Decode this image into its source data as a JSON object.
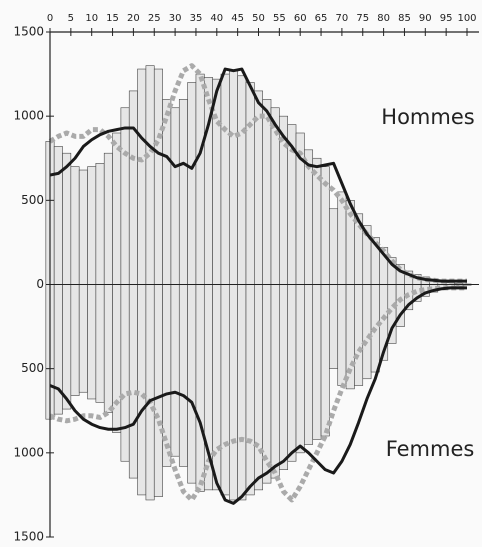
{
  "chart_data": {
    "type": "pyramid",
    "annotations": [
      "Hommes",
      "Femmes"
    ],
    "x": [
      0,
      2,
      4,
      6,
      8,
      10,
      12,
      14,
      16,
      18,
      20,
      22,
      24,
      26,
      28,
      30,
      32,
      34,
      36,
      38,
      40,
      42,
      44,
      46,
      48,
      50,
      52,
      54,
      56,
      58,
      60,
      62,
      64,
      66,
      68,
      70,
      72,
      74,
      76,
      78,
      80,
      82,
      84,
      86,
      88,
      90,
      92,
      94,
      96,
      98,
      100
    ],
    "xlim": [
      0,
      100
    ],
    "xticks": [
      0,
      5,
      10,
      15,
      20,
      25,
      30,
      35,
      40,
      45,
      50,
      55,
      60,
      65,
      70,
      75,
      80,
      85,
      90,
      95,
      100
    ],
    "ylim": [
      -1500,
      1500
    ],
    "yticks": [
      1500,
      1000,
      500,
      0,
      {
        "value": -500,
        "label": "500"
      },
      {
        "value": -1000,
        "label": "1000"
      },
      {
        "value": -1500,
        "label": "1500"
      }
    ],
    "series": [
      {
        "type": "bar",
        "color": "#e6e6e6",
        "values": [
          850,
          820,
          780,
          700,
          680,
          700,
          720,
          780,
          900,
          1050,
          1150,
          1280,
          1300,
          1280,
          1100,
          1050,
          1100,
          1200,
          1250,
          1230,
          1220,
          1250,
          1270,
          1240,
          1200,
          1150,
          1100,
          1050,
          1000,
          950,
          900,
          800,
          750,
          700,
          450,
          550,
          500,
          420,
          350,
          280,
          220,
          160,
          120,
          80,
          60,
          45,
          30,
          20,
          12,
          6,
          3
        ]
      },
      {
        "type": "line",
        "color": "#aaaaaa",
        "values": [
          850,
          880,
          900,
          880,
          880,
          920,
          920,
          880,
          820,
          780,
          750,
          740,
          780,
          860,
          1000,
          1150,
          1270,
          1300,
          1250,
          1100,
          970,
          920,
          880,
          900,
          950,
          1000,
          1000,
          920,
          840,
          800,
          780,
          700,
          650,
          600,
          560,
          500,
          420,
          360,
          300,
          250,
          200,
          140,
          90,
          60,
          40,
          30,
          25,
          20,
          20,
          20,
          20
        ]
      },
      {
        "type": "line",
        "color": "#1a1a1a",
        "values": [
          650,
          660,
          700,
          750,
          820,
          860,
          890,
          910,
          920,
          930,
          930,
          870,
          820,
          780,
          760,
          700,
          720,
          690,
          780,
          950,
          1150,
          1280,
          1270,
          1280,
          1180,
          1080,
          1030,
          950,
          880,
          820,
          750,
          710,
          700,
          710,
          720,
          600,
          480,
          380,
          300,
          240,
          180,
          120,
          80,
          60,
          40,
          30,
          25,
          20,
          20,
          20,
          20
        ]
      },
      {
        "type": "bar",
        "color": "#e6e6e6",
        "values": [
          -800,
          -770,
          -740,
          -660,
          -640,
          -680,
          -700,
          -760,
          -880,
          -1050,
          -1150,
          -1250,
          -1280,
          -1260,
          -1080,
          -1020,
          -1080,
          -1180,
          -1230,
          -1220,
          -1220,
          -1250,
          -1280,
          -1280,
          -1250,
          -1220,
          -1180,
          -1150,
          -1100,
          -1050,
          -1000,
          -950,
          -920,
          -900,
          -500,
          -600,
          -620,
          -600,
          -560,
          -520,
          -450,
          -350,
          -250,
          -150,
          -100,
          -70,
          -45,
          -25,
          -15,
          -8,
          -4
        ]
      },
      {
        "type": "line",
        "color": "#aaaaaa",
        "values": [
          -780,
          -800,
          -810,
          -800,
          -780,
          -780,
          -790,
          -760,
          -700,
          -650,
          -640,
          -650,
          -700,
          -800,
          -950,
          -1100,
          -1230,
          -1280,
          -1200,
          -1050,
          -980,
          -950,
          -930,
          -920,
          -930,
          -960,
          -1050,
          -1120,
          -1230,
          -1280,
          -1200,
          -1100,
          -1000,
          -900,
          -750,
          -620,
          -500,
          -400,
          -330,
          -260,
          -200,
          -140,
          -90,
          -60,
          -40,
          -30,
          -25,
          -20,
          -20,
          -20,
          -20
        ]
      },
      {
        "type": "line",
        "color": "#1a1a1a",
        "values": [
          -600,
          -620,
          -680,
          -750,
          -800,
          -830,
          -850,
          -860,
          -860,
          -850,
          -830,
          -750,
          -690,
          -670,
          -650,
          -640,
          -660,
          -700,
          -820,
          -1000,
          -1180,
          -1280,
          -1300,
          -1260,
          -1200,
          -1150,
          -1120,
          -1080,
          -1050,
          -1000,
          -960,
          -1000,
          -1050,
          -1100,
          -1120,
          -1050,
          -950,
          -820,
          -680,
          -560,
          -400,
          -260,
          -180,
          -120,
          -80,
          -50,
          -35,
          -25,
          -20,
          -20,
          -20
        ]
      }
    ]
  }
}
